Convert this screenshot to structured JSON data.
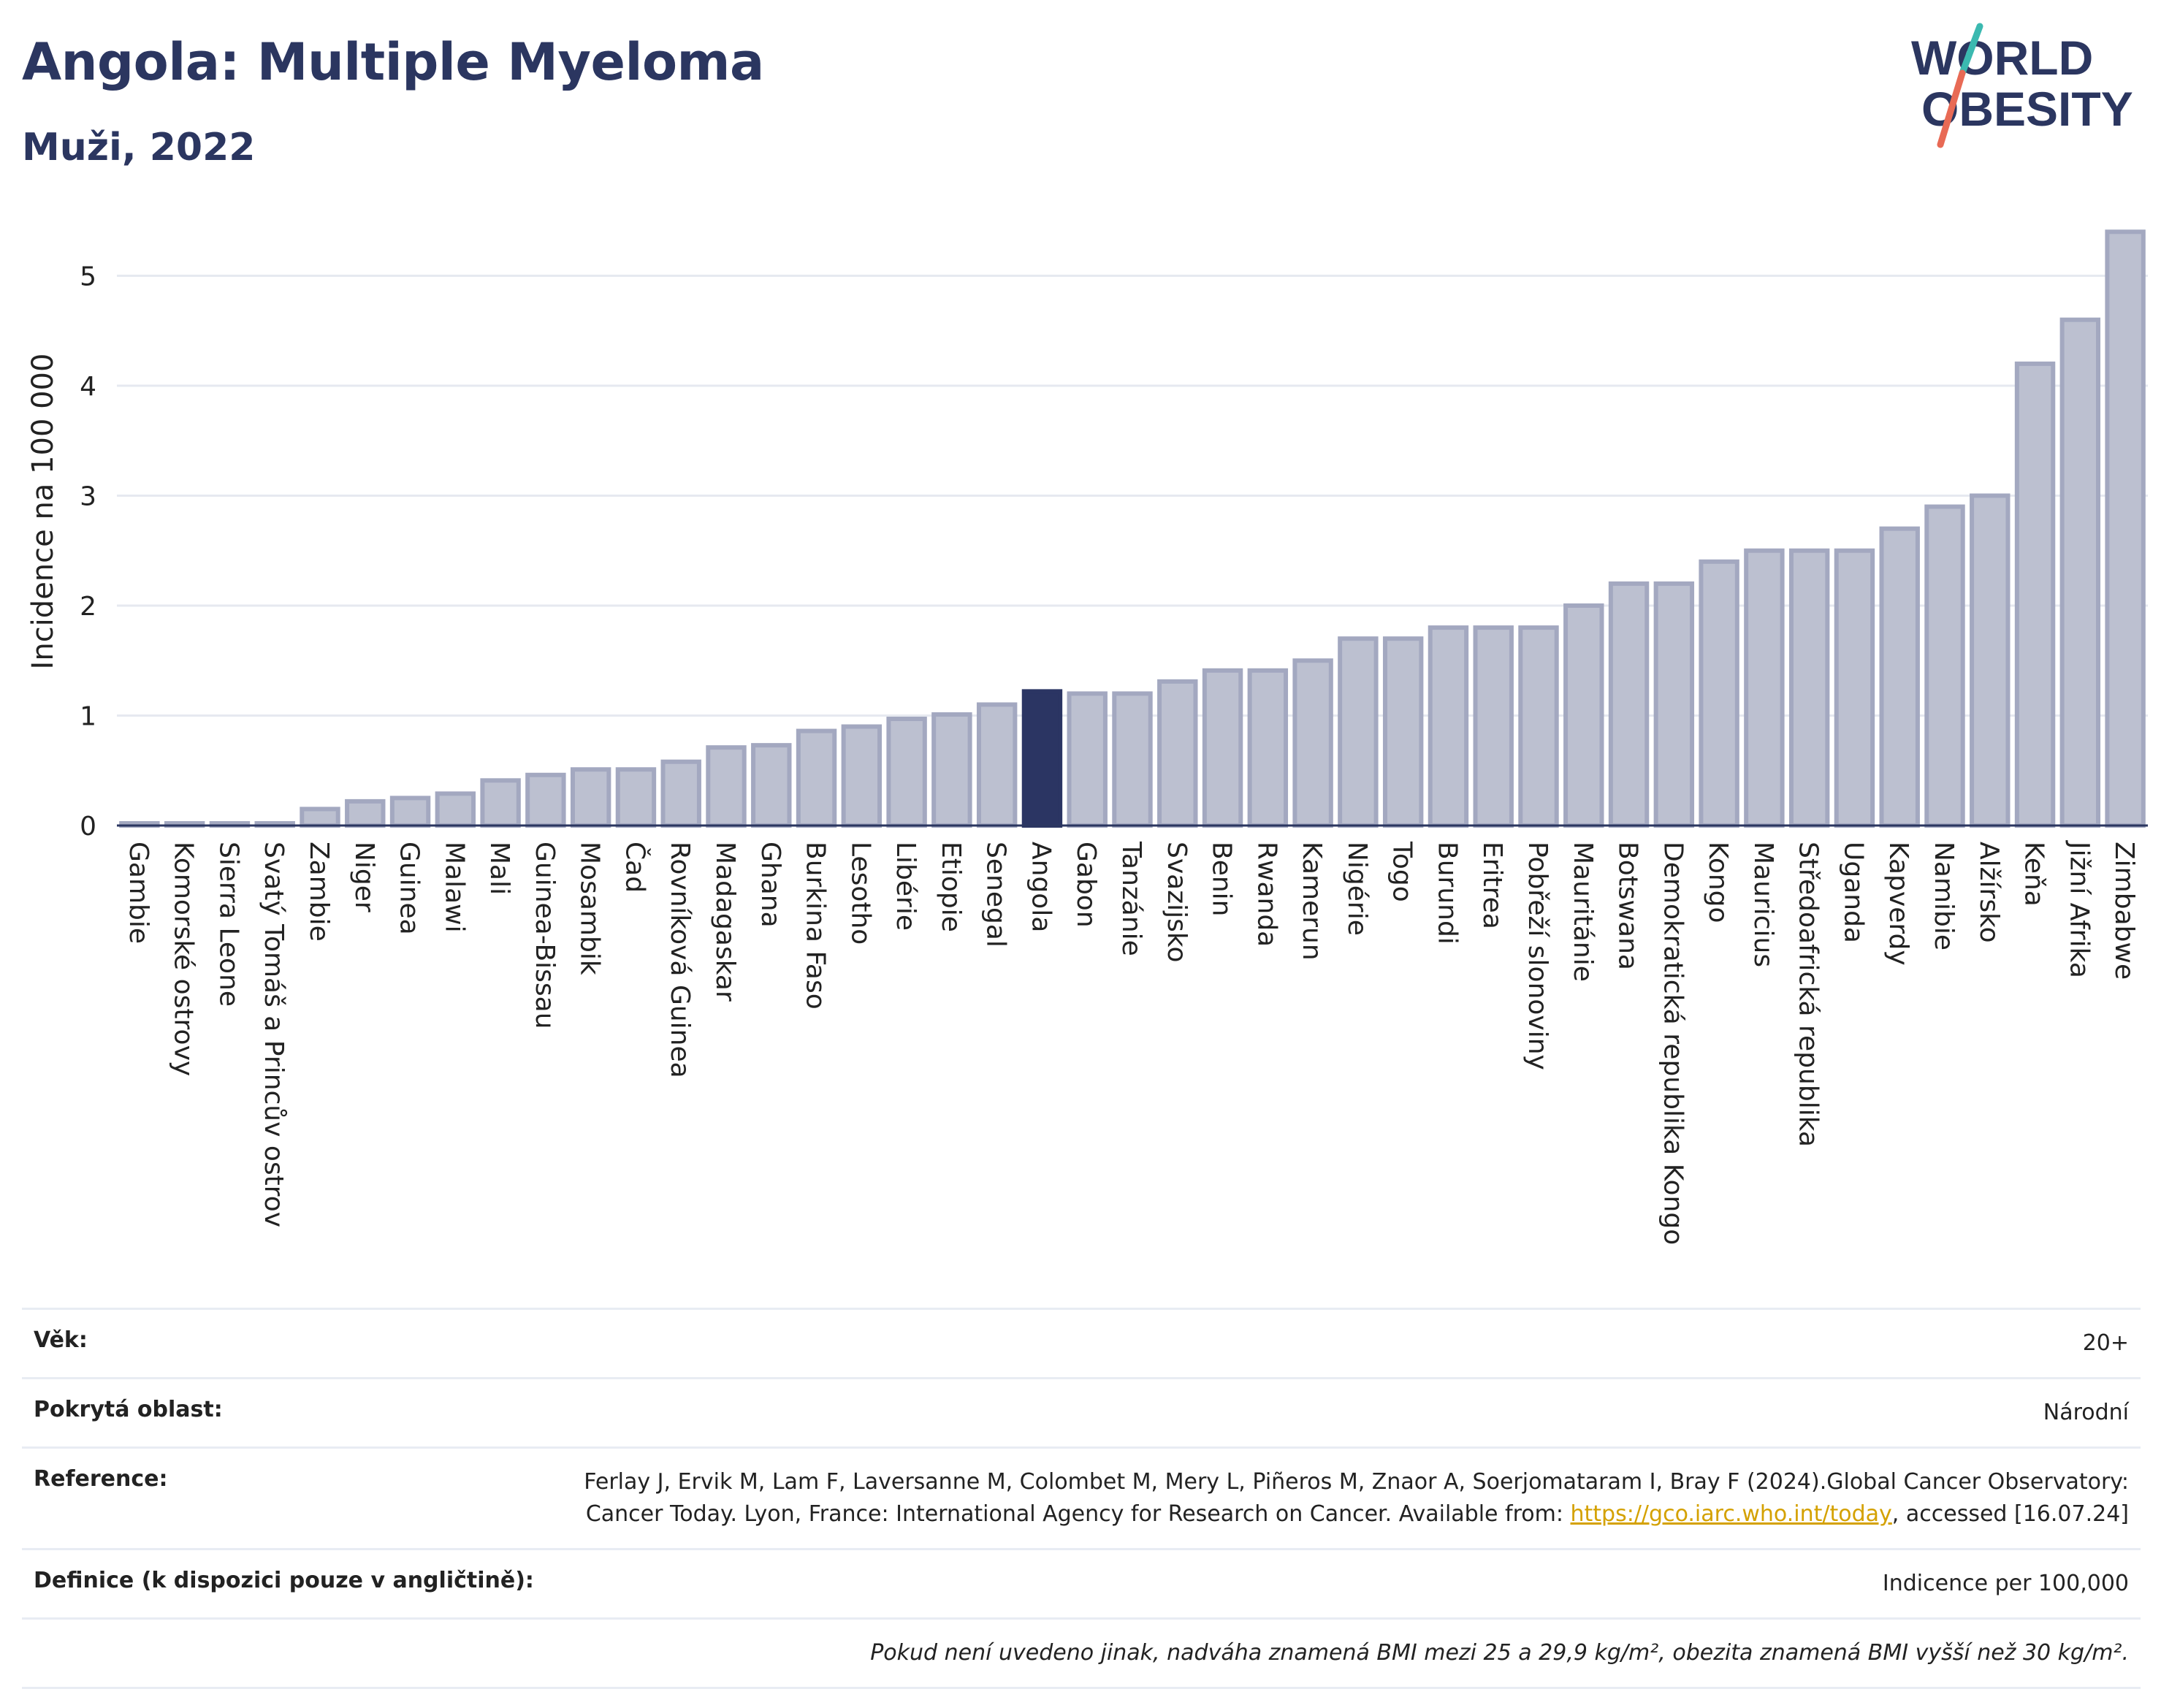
{
  "header": {
    "title": "Angola: Multiple Myeloma",
    "subtitle": "Muži, 2022"
  },
  "logo": {
    "line1": "WORLD",
    "line2": "OBESITY"
  },
  "colors": {
    "highlight": "#2b3563",
    "bar": "#bcc0d0",
    "bar_border": "#a3a8c0",
    "title": "#2b3660",
    "grid": "#e6e9f0"
  },
  "chart_data": {
    "type": "bar",
    "title": "Angola: Multiple Myeloma",
    "subtitle": "Muži, 2022",
    "ylabel": "Incidence na 100 000",
    "xlabel": "",
    "ylim": [
      0,
      5.5
    ],
    "yticks": [
      0,
      1,
      2,
      3,
      4,
      5
    ],
    "grid": true,
    "highlight": "Angola",
    "categories": [
      "Gambie",
      "Komorské ostrovy",
      "Sierra Leone",
      "Svatý Tomáš a Princův ostrov",
      "Zambie",
      "Niger",
      "Guinea",
      "Malawi",
      "Mali",
      "Guinea-Bissau",
      "Mosambik",
      "Čad",
      "Rovníková Guinea",
      "Madagaskar",
      "Ghana",
      "Burkina Faso",
      "Lesotho",
      "Libérie",
      "Etiopie",
      "Senegal",
      "Angola",
      "Gabon",
      "Tanzánie",
      "Svazijsko",
      "Benin",
      "Rwanda",
      "Kamerun",
      "Nigérie",
      "Togo",
      "Burundi",
      "Eritrea",
      "Pobřeží slonoviny",
      "Mauritánie",
      "Botswana",
      "Demokratická republika Kongo",
      "Kongo",
      "Mauricius",
      "Středoafrická republika",
      "Uganda",
      "Kapverdy",
      "Namibie",
      "Alžírsko",
      "Keňa",
      "Jižní Afrika",
      "Zimbabwe"
    ],
    "values": [
      0.02,
      0.02,
      0.02,
      0.02,
      0.15,
      0.22,
      0.25,
      0.29,
      0.41,
      0.46,
      0.51,
      0.51,
      0.58,
      0.71,
      0.73,
      0.86,
      0.9,
      0.97,
      1.01,
      1.1,
      1.22,
      1.2,
      1.2,
      1.31,
      1.41,
      1.41,
      1.5,
      1.7,
      1.7,
      1.8,
      1.8,
      1.8,
      2.0,
      2.2,
      2.2,
      2.4,
      2.5,
      2.5,
      2.5,
      2.7,
      2.9,
      3.0,
      4.2,
      4.6,
      5.4
    ]
  },
  "info": {
    "age_label": "Věk:",
    "age_value": "20+",
    "area_label": "Pokrytá oblast:",
    "area_value": "Národní",
    "ref_label": "Reference:",
    "ref_text_1": "Ferlay J, Ervik M, Lam F, Laversanne M, Colombet M, Mery L, Piñeros M, Znaor A, Soerjomataram I, Bray F (2024).Global Cancer Observatory: Cancer Today. Lyon, France: International Agency for Research on Cancer. Available from: ",
    "ref_link": "https://gco.iarc.who.int/today",
    "ref_text_2": ", accessed [16.07.24]",
    "def_label": "Definice (k dispozici pouze v angličtině):",
    "def_value": "Indicence per 100,000",
    "note": "Pokud není uvedeno jinak, nadváha znamená BMI mezi 25 a 29,9 kg/m², obezita znamená BMI vyšší než 30 kg/m²."
  }
}
